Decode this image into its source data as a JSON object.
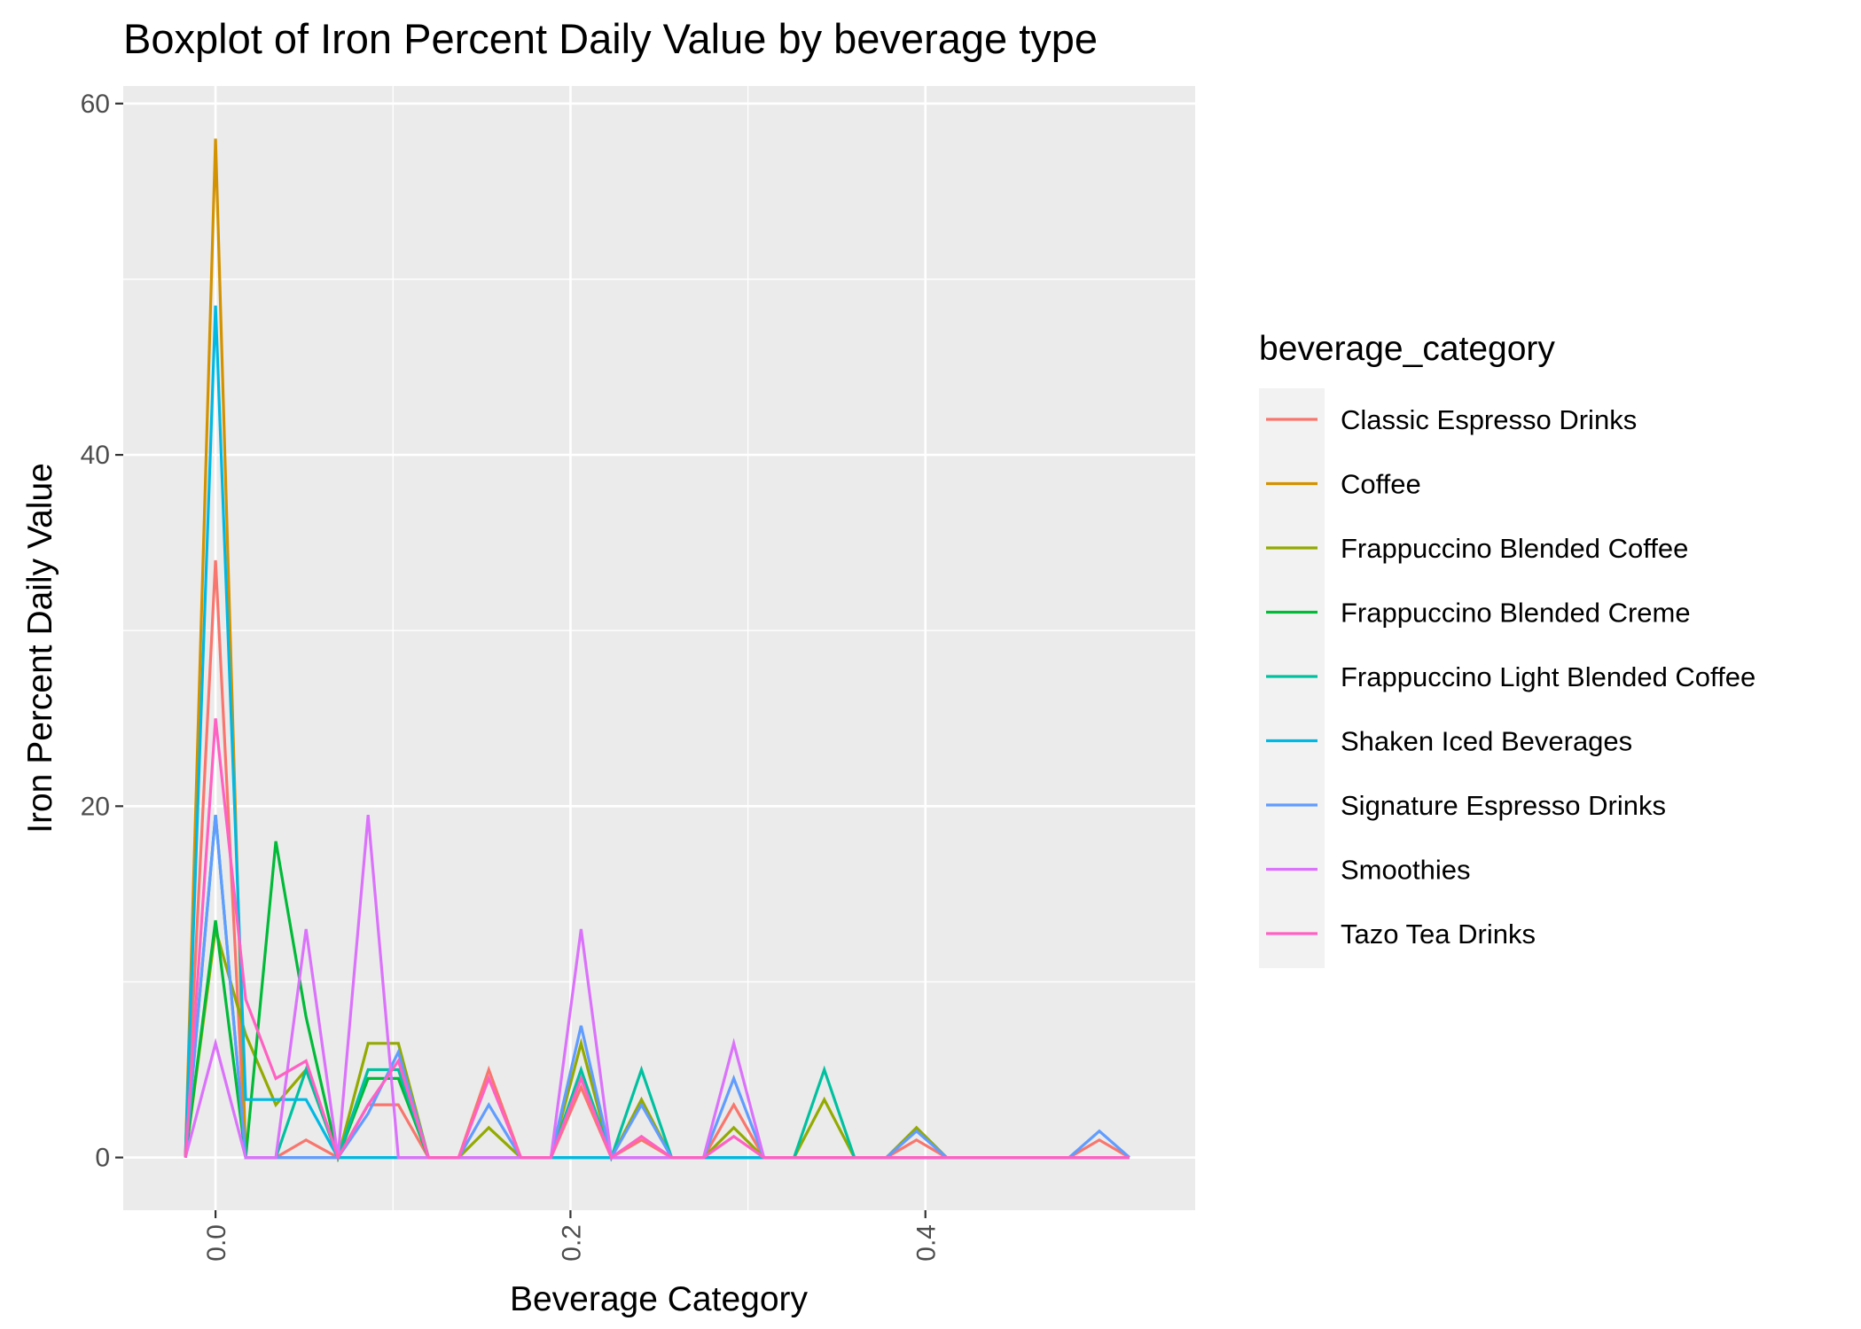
{
  "chart_data": {
    "type": "line",
    "title": "Boxplot of Iron Percent Daily Value by beverage type",
    "xlabel": "Beverage Category",
    "ylabel": "Iron Percent Daily Value",
    "xlim": [
      -0.052,
      0.552
    ],
    "ylim": [
      -3,
      61
    ],
    "x_ticks": [
      0.0,
      0.2,
      0.4
    ],
    "x_tick_labels": [
      "0.0",
      "0.2",
      "0.4"
    ],
    "y_ticks": [
      0,
      20,
      40,
      60
    ],
    "y_tick_labels": [
      "0",
      "20",
      "40",
      "60"
    ],
    "x_tick_label_rotation": "vertical",
    "grid": true,
    "legend_title": "beverage_category",
    "legend_position": "right",
    "x": [
      -0.017,
      0.0,
      0.017,
      0.034,
      0.051,
      0.069,
      0.086,
      0.103,
      0.12,
      0.137,
      0.154,
      0.172,
      0.189,
      0.206,
      0.223,
      0.24,
      0.257,
      0.275,
      0.292,
      0.309,
      0.326,
      0.343,
      0.36,
      0.378,
      0.395,
      0.412,
      0.429,
      0.446,
      0.463,
      0.481,
      0.498,
      0.515
    ],
    "series": [
      {
        "name": "Classic Espresso Drinks",
        "color": "#F8766D",
        "values": [
          0,
          34,
          0,
          0,
          1,
          0,
          3,
          3,
          0,
          0,
          5,
          0,
          0,
          4,
          0,
          1,
          0,
          0,
          3,
          0,
          0,
          0,
          0,
          0,
          1,
          0,
          0,
          0,
          0,
          0,
          1,
          0
        ]
      },
      {
        "name": "Coffee",
        "color": "#D39200",
        "values": [
          0,
          58,
          0,
          0,
          0,
          0,
          0,
          0,
          0,
          0,
          0,
          0,
          0,
          0,
          0,
          0,
          0,
          0,
          0,
          0,
          0,
          0,
          0,
          0,
          0,
          0,
          0,
          0,
          0,
          0,
          0,
          0
        ]
      },
      {
        "name": "Frappuccino Blended Coffee",
        "color": "#93AA00",
        "values": [
          0,
          13,
          7,
          3,
          5,
          0,
          6.5,
          6.5,
          0,
          0,
          1.7,
          0,
          0,
          6.5,
          0,
          3.3,
          0,
          0,
          1.7,
          0,
          0,
          3.3,
          0,
          0,
          1.7,
          0,
          0,
          0,
          0,
          0,
          0,
          0
        ]
      },
      {
        "name": "Frappuccino Blended Creme",
        "color": "#00BA38",
        "values": [
          0,
          13.5,
          0,
          18,
          8,
          0,
          4.5,
          4.5,
          0,
          0,
          0,
          0,
          0,
          0,
          0,
          0,
          0,
          0,
          0,
          0,
          0,
          0,
          0,
          0,
          0,
          0,
          0,
          0,
          0,
          0,
          0,
          0
        ]
      },
      {
        "name": "Frappuccino Light Blended Coffee",
        "color": "#00C19F",
        "values": [
          0,
          19.5,
          0,
          0,
          5,
          0,
          5,
          5,
          0,
          0,
          0,
          0,
          0,
          5,
          0,
          5,
          0,
          0,
          0,
          0,
          0,
          5,
          0,
          0,
          0,
          0,
          0,
          0,
          0,
          0,
          0,
          0
        ]
      },
      {
        "name": "Shaken Iced Beverages",
        "color": "#00B9E3",
        "values": [
          0,
          48.5,
          3.3,
          3.3,
          3.3,
          0,
          0,
          0,
          0,
          0,
          0,
          0,
          0,
          0,
          0,
          0,
          0,
          0,
          0,
          0,
          0,
          0,
          0,
          0,
          0,
          0,
          0,
          0,
          0,
          0,
          0,
          0
        ]
      },
      {
        "name": "Signature Espresso Drinks",
        "color": "#619CFF",
        "values": [
          0,
          19.5,
          0,
          0,
          0,
          0,
          2.5,
          6,
          0,
          0,
          3,
          0,
          0,
          7.5,
          0,
          3,
          0,
          0,
          4.5,
          0,
          0,
          0,
          0,
          0,
          1.5,
          0,
          0,
          0,
          0,
          0,
          1.5,
          0
        ]
      },
      {
        "name": "Smoothies",
        "color": "#DB72FB",
        "values": [
          0,
          6.5,
          0,
          0,
          13,
          0,
          19.5,
          0,
          0,
          0,
          0,
          0,
          0,
          13,
          0,
          0,
          0,
          0,
          6.5,
          0,
          0,
          0,
          0,
          0,
          0,
          0,
          0,
          0,
          0,
          0,
          0,
          0
        ]
      },
      {
        "name": "Tazo Tea Drinks",
        "color": "#FF61C3",
        "values": [
          0,
          25,
          9,
          4.5,
          5.5,
          0,
          3,
          5.5,
          0,
          0,
          4.5,
          0,
          0,
          4.5,
          0,
          1.2,
          0,
          0,
          1.2,
          0,
          0,
          0,
          0,
          0,
          0,
          0,
          0,
          0,
          0,
          0,
          0,
          0
        ]
      }
    ]
  }
}
